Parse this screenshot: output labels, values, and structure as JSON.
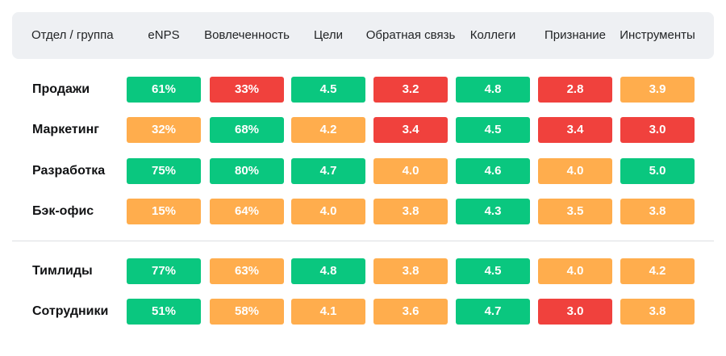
{
  "colors": {
    "green": "#0ac77f",
    "orange": "#ffad4d",
    "red": "#f0413d",
    "header_bg": "#eef0f3"
  },
  "chart_data": {
    "type": "heatmap",
    "title": "",
    "row_header": "Отдел / группа",
    "columns": [
      "eNPS",
      "Вовлеченность",
      "Цели",
      "Обратная связь",
      "Коллеги",
      "Признание",
      "Инструменты"
    ],
    "groups": [
      {
        "rows": [
          {
            "label": "Продажи",
            "cells": [
              {
                "value": "61%",
                "status": "green"
              },
              {
                "value": "33%",
                "status": "red"
              },
              {
                "value": "4.5",
                "status": "green"
              },
              {
                "value": "3.2",
                "status": "red"
              },
              {
                "value": "4.8",
                "status": "green"
              },
              {
                "value": "2.8",
                "status": "red"
              },
              {
                "value": "3.9",
                "status": "orange"
              }
            ]
          },
          {
            "label": "Маркетинг",
            "cells": [
              {
                "value": "32%",
                "status": "orange"
              },
              {
                "value": "68%",
                "status": "green"
              },
              {
                "value": "4.2",
                "status": "orange"
              },
              {
                "value": "3.4",
                "status": "red"
              },
              {
                "value": "4.5",
                "status": "green"
              },
              {
                "value": "3.4",
                "status": "red"
              },
              {
                "value": "3.0",
                "status": "red"
              }
            ]
          },
          {
            "label": "Разработка",
            "cells": [
              {
                "value": "75%",
                "status": "green"
              },
              {
                "value": "80%",
                "status": "green"
              },
              {
                "value": "4.7",
                "status": "green"
              },
              {
                "value": "4.0",
                "status": "orange"
              },
              {
                "value": "4.6",
                "status": "green"
              },
              {
                "value": "4.0",
                "status": "orange"
              },
              {
                "value": "5.0",
                "status": "green"
              }
            ]
          },
          {
            "label": "Бэк-офис",
            "cells": [
              {
                "value": "15%",
                "status": "orange"
              },
              {
                "value": "64%",
                "status": "orange"
              },
              {
                "value": "4.0",
                "status": "orange"
              },
              {
                "value": "3.8",
                "status": "orange"
              },
              {
                "value": "4.3",
                "status": "green"
              },
              {
                "value": "3.5",
                "status": "orange"
              },
              {
                "value": "3.8",
                "status": "orange"
              }
            ]
          }
        ]
      },
      {
        "rows": [
          {
            "label": "Тимлиды",
            "cells": [
              {
                "value": "77%",
                "status": "green"
              },
              {
                "value": "63%",
                "status": "orange"
              },
              {
                "value": "4.8",
                "status": "green"
              },
              {
                "value": "3.8",
                "status": "orange"
              },
              {
                "value": "4.5",
                "status": "green"
              },
              {
                "value": "4.0",
                "status": "orange"
              },
              {
                "value": "4.2",
                "status": "orange"
              }
            ]
          },
          {
            "label": "Сотрудники",
            "cells": [
              {
                "value": "51%",
                "status": "green"
              },
              {
                "value": "58%",
                "status": "orange"
              },
              {
                "value": "4.1",
                "status": "orange"
              },
              {
                "value": "3.6",
                "status": "orange"
              },
              {
                "value": "4.7",
                "status": "green"
              },
              {
                "value": "3.0",
                "status": "red"
              },
              {
                "value": "3.8",
                "status": "orange"
              }
            ]
          }
        ]
      }
    ]
  }
}
